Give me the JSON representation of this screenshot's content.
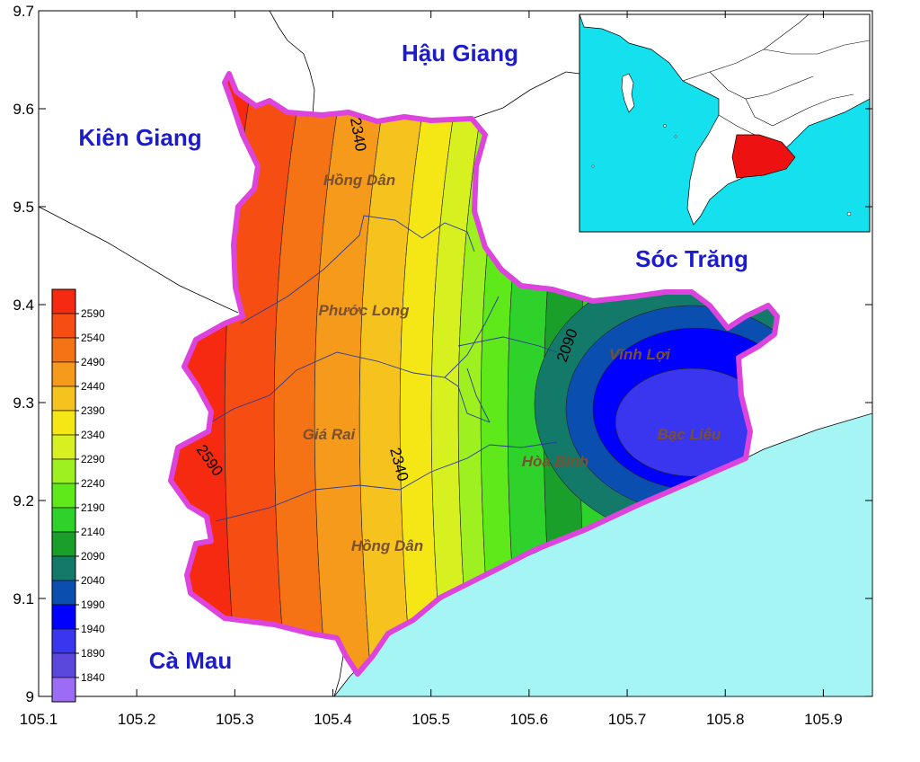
{
  "map": {
    "axes": {
      "x_ticks": [
        "105.1",
        "105.2",
        "105.3",
        "105.4",
        "105.5",
        "105.6",
        "105.7",
        "105.8",
        "105.9"
      ],
      "y_ticks": [
        "9.7",
        "9.6",
        "9.5",
        "9.4",
        "9.3",
        "9.2",
        "9.1",
        "9"
      ],
      "xlim": [
        105.1,
        105.95
      ],
      "ylim": [
        9.0,
        9.7
      ]
    },
    "provinces": [
      {
        "name": "Hậu Giang"
      },
      {
        "name": "Kiên Giang"
      },
      {
        "name": "Sóc Trăng"
      },
      {
        "name": "Cà Mau"
      }
    ],
    "districts": [
      {
        "name": "Hồng Dân"
      },
      {
        "name": "Phước Long"
      },
      {
        "name": "Giá Rai"
      },
      {
        "name": "Hồng Dân"
      },
      {
        "name": "Vĩnh Lợi"
      },
      {
        "name": "Hòa Bình"
      },
      {
        "name": "Bạc Liêu"
      }
    ],
    "contour_labels": [
      "2340",
      "2340",
      "2590",
      "2090"
    ],
    "legend": {
      "levels": [
        "2590",
        "2540",
        "2490",
        "2440",
        "2390",
        "2340",
        "2290",
        "2240",
        "2190",
        "2140",
        "2090",
        "2040",
        "1990",
        "1940",
        "1890",
        "1840"
      ],
      "colors": [
        "#f52a10",
        "#f54d12",
        "#f57315",
        "#f59a1a",
        "#f5c21e",
        "#f5e615",
        "#d6f020",
        "#9ef020",
        "#5fe81a",
        "#2fd22a",
        "#1aa02a",
        "#137a6a",
        "#0a4fb0",
        "#0000ff",
        "#3a35ee",
        "#5a48dd",
        "#9c6cf5"
      ]
    },
    "colors": {
      "sea": "#a6f5f5",
      "boundary": "#dd44dd",
      "label_blue": "#1c1ccc",
      "inset_highlight": "#ee1111"
    }
  }
}
